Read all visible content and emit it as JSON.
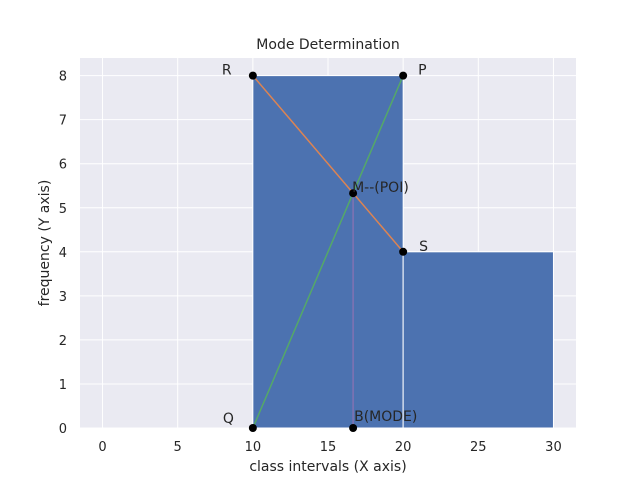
{
  "chart_data": {
    "type": "bar",
    "title": "Mode Determination",
    "xlabel": "class intervals (X axis)",
    "ylabel": "frequency (Y axis)",
    "xlim": [
      -1.5,
      31.5
    ],
    "ylim": [
      0,
      8.4
    ],
    "xticks": [
      0,
      5,
      10,
      15,
      20,
      25,
      30
    ],
    "yticks": [
      0,
      1,
      2,
      3,
      4,
      5,
      6,
      7,
      8
    ],
    "grid": true,
    "bars": [
      {
        "x0": 10,
        "x1": 20,
        "height": 8
      },
      {
        "x0": 20,
        "x1": 30,
        "height": 4
      }
    ],
    "lines": [
      {
        "from": [
          10,
          8
        ],
        "to": [
          20,
          4
        ],
        "color": "#dd8452"
      },
      {
        "from": [
          10,
          0
        ],
        "to": [
          20,
          8
        ],
        "color": "#55a868"
      },
      {
        "from": [
          16.67,
          5.33
        ],
        "to": [
          16.67,
          0
        ],
        "color": "#8172b3"
      }
    ],
    "points": [
      {
        "label": "R",
        "x": 10,
        "y": 8
      },
      {
        "label": "P",
        "x": 20,
        "y": 8
      },
      {
        "label": "S",
        "x": 20,
        "y": 4
      },
      {
        "label": "Q",
        "x": 10,
        "y": 0
      },
      {
        "label": "M--(POI)",
        "x": 16.67,
        "y": 5.33
      },
      {
        "label": "B(MODE)",
        "x": 16.67,
        "y": 0
      }
    ],
    "colors": {
      "bar": "#4c72b0",
      "background": "#eaeaf2",
      "grid": "#ffffff",
      "point": "#000000"
    }
  }
}
